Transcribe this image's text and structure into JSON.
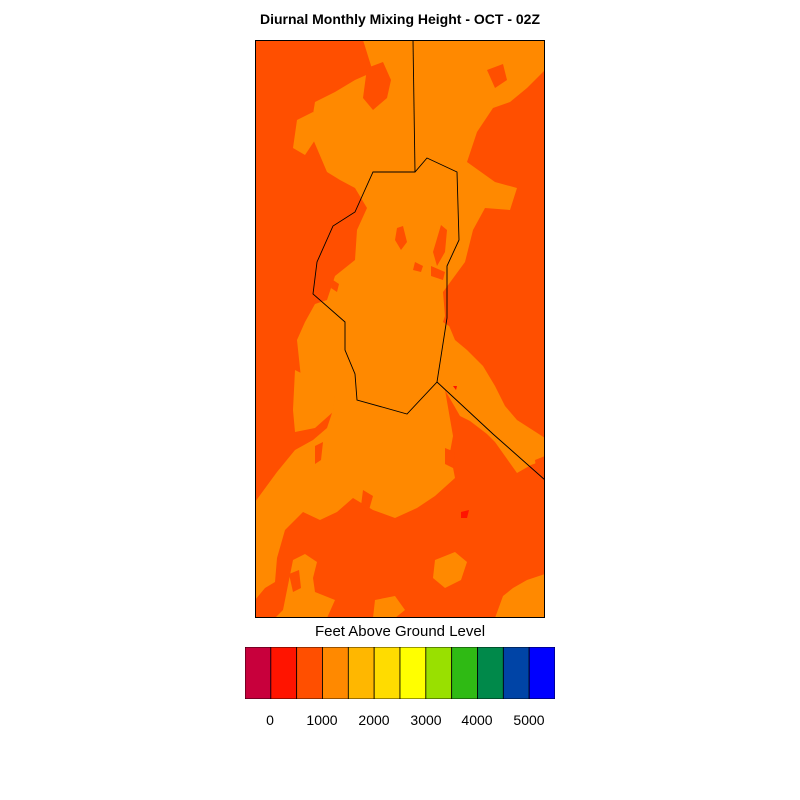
{
  "title": "Diurnal Monthly Mixing Height - OCT - 02Z",
  "colorbar": {
    "label": "Feet Above Ground Level",
    "colors": [
      "#c8003c",
      "#ff1400",
      "#ff4f00",
      "#ff8900",
      "#ffb700",
      "#ffdc00",
      "#ffff00",
      "#99e000",
      "#2fba14",
      "#00894a",
      "#0044a6",
      "#0000ff"
    ],
    "tick_labels": [
      "0",
      "1000",
      "2000",
      "3000",
      "4000",
      "5000"
    ]
  },
  "map": {
    "background_class_color": "#ff4f00",
    "secondary_class_color": "#ff8900",
    "spot_class_color": "#ff1400",
    "boundary_color": "#000000"
  }
}
